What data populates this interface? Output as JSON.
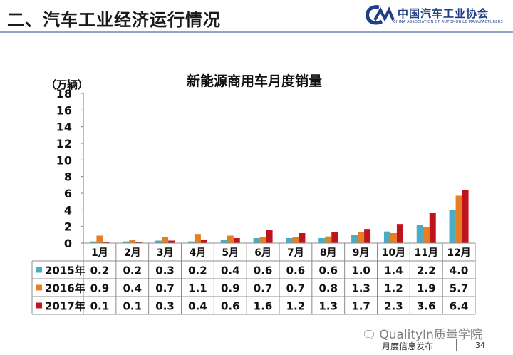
{
  "header": {
    "title": "二、汽车工业经济运行情况",
    "logo_name": "中国汽车工业协会",
    "logo_sub": "CHINA ASSOCIATION OF AUTOMOBILE MANUFACTURERS"
  },
  "chart_data": {
    "type": "bar",
    "title": "新能源商用车月度销量",
    "ylabel": "（万辆）",
    "xlabel": "",
    "ylim": [
      0,
      18
    ],
    "yticks": [
      0,
      2,
      4,
      6,
      8,
      10,
      12,
      14,
      16,
      18
    ],
    "grid": false,
    "legend": "table-below",
    "categories": [
      "1月",
      "2月",
      "3月",
      "4月",
      "5月",
      "6月",
      "7月",
      "8月",
      "9月",
      "10月",
      "11月",
      "12月"
    ],
    "series": [
      {
        "name": "2015年",
        "color": "#4bacc6",
        "values": [
          0.2,
          0.2,
          0.3,
          0.2,
          0.4,
          0.6,
          0.6,
          0.6,
          1.0,
          1.4,
          2.2,
          4.0
        ]
      },
      {
        "name": "2016年",
        "color": "#e67e22",
        "values": [
          0.9,
          0.4,
          0.7,
          1.1,
          0.9,
          0.7,
          0.7,
          0.8,
          1.3,
          1.2,
          1.9,
          5.7
        ]
      },
      {
        "name": "2017年",
        "color": "#c0141c",
        "values": [
          0.1,
          0.1,
          0.3,
          0.4,
          0.6,
          1.6,
          1.2,
          1.3,
          1.7,
          2.3,
          3.6,
          6.4
        ]
      }
    ]
  },
  "footer": {
    "watermark": "QualityIn质量学院",
    "left_text": "月度信息发布",
    "page": "34"
  }
}
